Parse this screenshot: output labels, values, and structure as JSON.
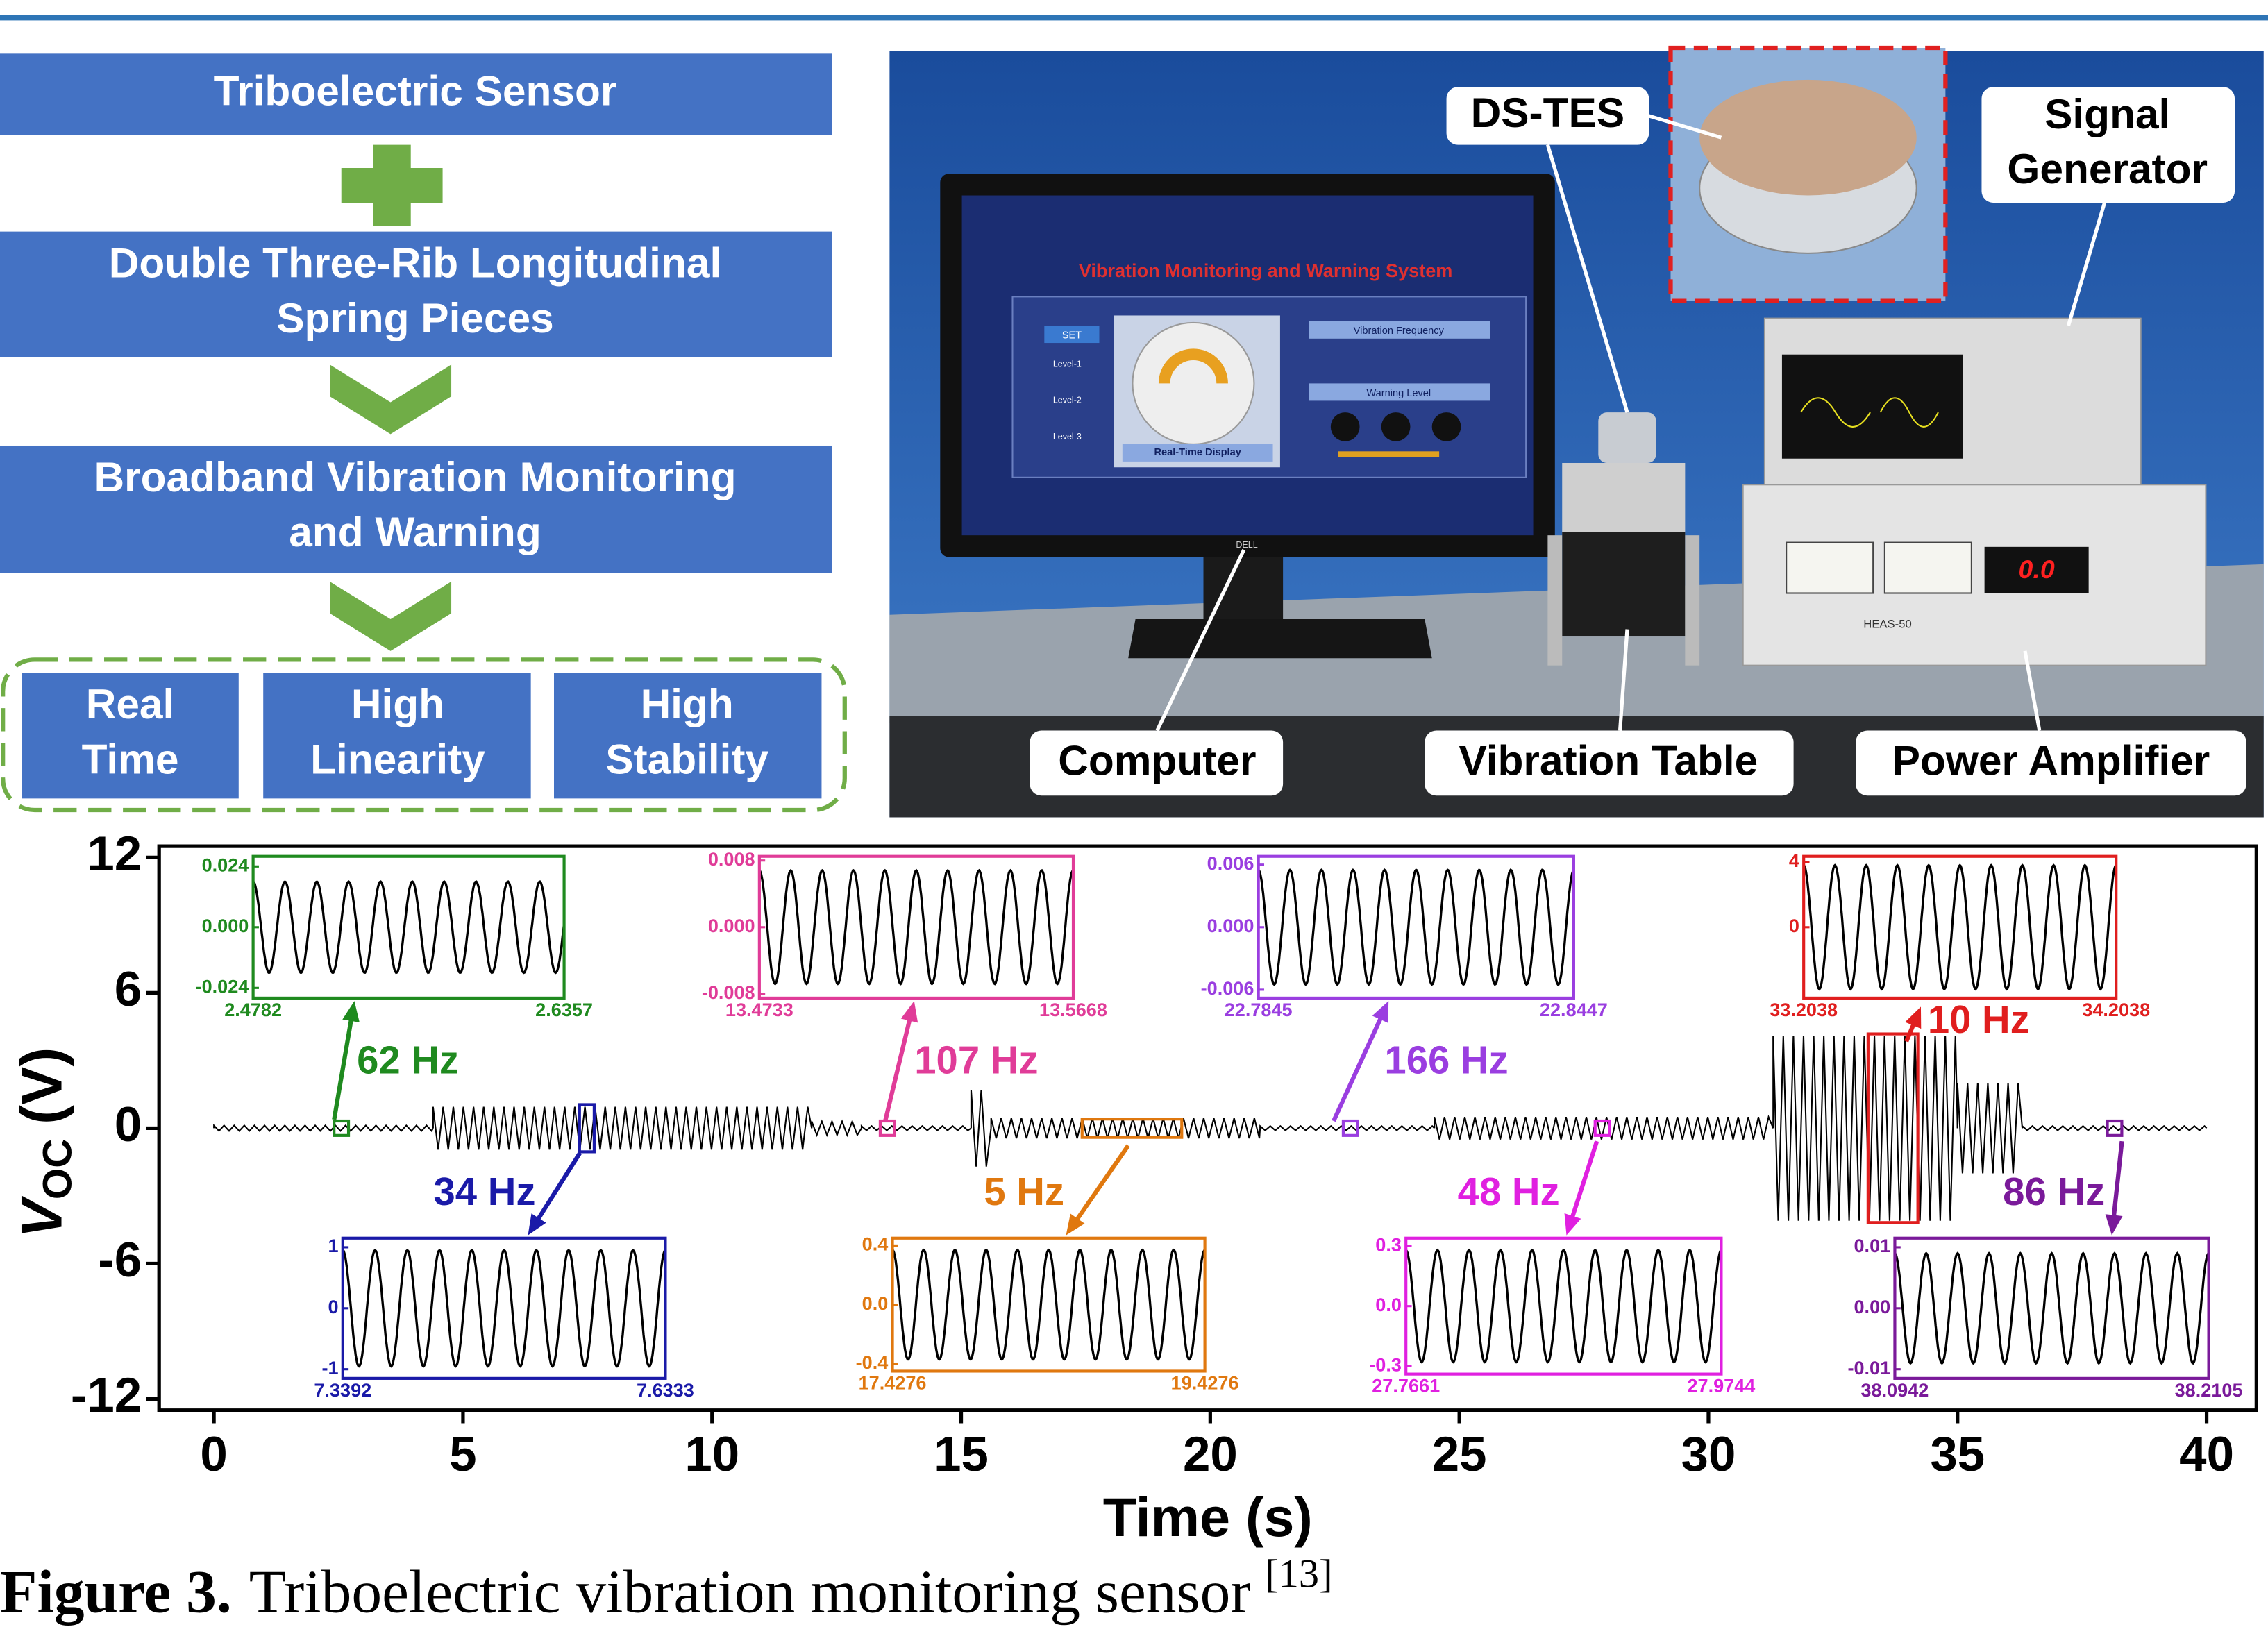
{
  "flowchart": {
    "steps": [
      [
        "Triboelectric Sensor"
      ],
      [
        "Double Three-Rib Longitudinal",
        "Spring Pieces"
      ],
      [
        "Broadband Vibration Monitoring",
        "and Warning"
      ]
    ],
    "features": [
      [
        "Real",
        "Time"
      ],
      [
        "High",
        "Linearity"
      ],
      [
        "High",
        "Stability"
      ]
    ]
  },
  "photo": {
    "labels": {
      "sensor": "DS-TES",
      "generator": [
        "Signal",
        "Generator"
      ],
      "computer": "Computer",
      "table": "Vibration Table",
      "amplifier": "Power Amplifier"
    },
    "screen": {
      "title": "Vibration Monitoring and Warning System",
      "frequency": "Vibration Frequency",
      "warning": "Warning Level",
      "display": "Real-Time Display",
      "set": "SET",
      "levels": [
        "Level-1",
        "Level-2",
        "Level-3"
      ],
      "brand": "DELL"
    },
    "amplifier_display": "0.0",
    "amplifier_model": "HEAS-50"
  },
  "chart_data": {
    "type": "line",
    "xlabel": "Time (s)",
    "ylabel": {
      "symbol": "V",
      "subscript": "OC",
      "unit": "(V)"
    },
    "xlim": [
      -1.1,
      41
    ],
    "ylim": [
      -12.5,
      12.5
    ],
    "xticks": [
      0,
      5,
      10,
      15,
      20,
      25,
      30,
      35,
      40
    ],
    "yticks": [
      -12,
      -6,
      0,
      6,
      12
    ],
    "color": "#000000",
    "segments": [
      {
        "start": 0,
        "end": 4.4,
        "amplitude": 0.12
      },
      {
        "start": 4.4,
        "end": 12,
        "amplitude": 0.95
      },
      {
        "start": 12,
        "end": 13,
        "amplitude": 0.3
      },
      {
        "start": 13,
        "end": 15.2,
        "amplitude": 0.08
      },
      {
        "start": 15.2,
        "end": 15.6,
        "amplitude": 1.7
      },
      {
        "start": 15.6,
        "end": 21,
        "amplitude": 0.45
      },
      {
        "start": 21,
        "end": 24.5,
        "amplitude": 0.08
      },
      {
        "start": 24.5,
        "end": 31.3,
        "amplitude": 0.5
      },
      {
        "start": 31.3,
        "end": 35,
        "amplitude": 4.1
      },
      {
        "start": 35,
        "end": 36.3,
        "amplitude": 2
      },
      {
        "start": 36.3,
        "end": 40,
        "amplitude": 0.08
      }
    ],
    "insets": [
      {
        "frequency": 62,
        "frequency_label": "62 Hz",
        "color": "#1f8a1f",
        "xlim": [
          2.4782,
          2.6357
        ],
        "ylim": [
          -0.028,
          0.028
        ],
        "yticks": [
          0.024,
          {
            "value": 0,
            "label": "0.000"
          },
          -0.024
        ],
        "amplitude": 0.018
      },
      {
        "frequency": 34,
        "frequency_label": "34 Hz",
        "color": "#1a1aa8",
        "xlim": [
          7.3392,
          7.6333
        ],
        "ylim": [
          -1.15,
          1.15
        ],
        "yticks": [
          1,
          0,
          -1
        ],
        "amplitude": 0.95
      },
      {
        "frequency": 107,
        "frequency_label": "107 Hz",
        "color": "#e03c98",
        "xlim": [
          13.4733,
          13.5668
        ],
        "ylim": [
          -0.0085,
          0.0085
        ],
        "yticks": [
          0.008,
          {
            "value": 0,
            "label": "0.000"
          },
          -0.008
        ],
        "amplitude": 0.0068
      },
      {
        "frequency": 5,
        "frequency_label": "5 Hz",
        "color": "#e0780f",
        "xlim": [
          17.4276,
          19.4276
        ],
        "ylim": [
          -0.45,
          0.45
        ],
        "yticks": [
          0.4,
          {
            "value": 0,
            "label": "0.0"
          },
          -0.4
        ],
        "amplitude": 0.37
      },
      {
        "frequency": 166,
        "frequency_label": "166 Hz",
        "color": "#9a3ee0",
        "xlim": [
          22.7845,
          22.8447
        ],
        "ylim": [
          -0.0068,
          0.0068
        ],
        "yticks": [
          0.006,
          {
            "value": 0,
            "label": "0.000"
          },
          -0.006
        ],
        "amplitude": 0.0055
      },
      {
        "frequency": 48,
        "frequency_label": "48 Hz",
        "color": "#e020e0",
        "xlim": [
          27.7661,
          27.9744
        ],
        "ylim": [
          -0.34,
          0.34
        ],
        "yticks": [
          0.3,
          {
            "value": 0,
            "label": "0.0"
          },
          -0.3
        ],
        "amplitude": 0.28
      },
      {
        "frequency": 10,
        "frequency_label": "10 Hz",
        "color": "#e01e1e",
        "xlim": [
          33.2038,
          34.2038
        ],
        "ylim": [
          -4.35,
          4.35
        ],
        "yticks": [
          4,
          0
        ],
        "amplitude": 3.8
      },
      {
        "frequency": 86,
        "frequency_label": "86 Hz",
        "color": "#7a1a9a",
        "xlim": [
          38.0942,
          38.2105
        ],
        "ylim": [
          -0.0115,
          0.0115
        ],
        "yticks": [
          0.01,
          {
            "value": 0,
            "label": "0.00"
          },
          -0.01
        ],
        "amplitude": 0.009
      }
    ]
  },
  "caption": {
    "label": "Figure 3.",
    "text": "Triboelectric vibration monitoring sensor",
    "reference": "[13]"
  }
}
